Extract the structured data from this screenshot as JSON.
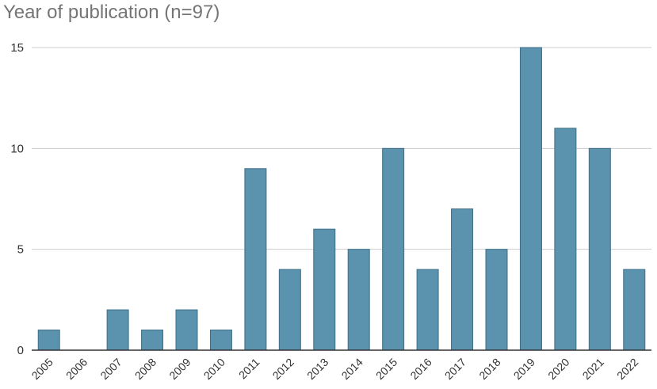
{
  "chart_data": {
    "type": "bar",
    "title": "Year of publication (n=97)",
    "xlabel": "",
    "ylabel": "",
    "categories": [
      "2005",
      "2006",
      "2007",
      "2008",
      "2009",
      "2010",
      "2011",
      "2012",
      "2013",
      "2014",
      "2015",
      "2016",
      "2017",
      "2018",
      "2019",
      "2020",
      "2021",
      "2022"
    ],
    "values": [
      1,
      0,
      2,
      1,
      2,
      1,
      9,
      4,
      6,
      5,
      10,
      4,
      7,
      5,
      15,
      11,
      10,
      4
    ],
    "ylim": [
      0,
      15
    ],
    "yticks": [
      "0",
      "5",
      "10",
      "15"
    ],
    "grid": true,
    "legend": "none",
    "bar_color": "#5b92ae",
    "bar_edge_color": "#3f6f86"
  }
}
